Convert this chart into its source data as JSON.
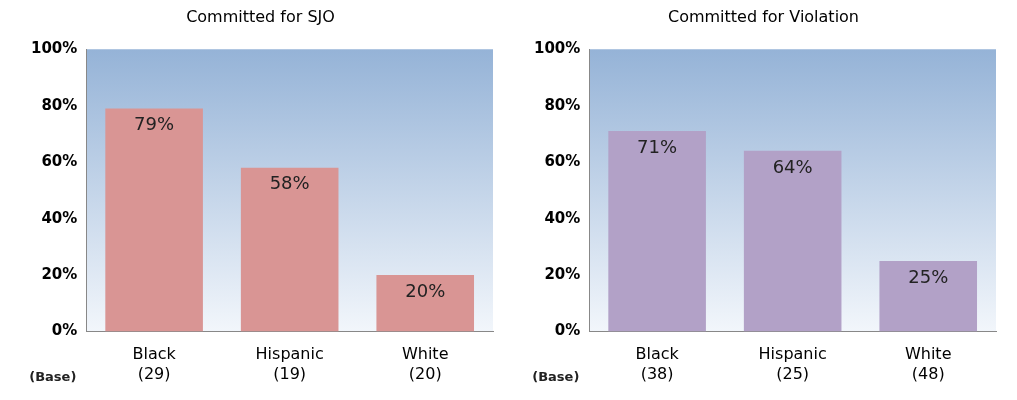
{
  "chart_data": [
    {
      "type": "bar",
      "title": "Committed for SJO",
      "categories": [
        "Black\n(29)",
        "Hispanic\n(19)",
        "White\n(20)"
      ],
      "values": [
        79,
        58,
        20
      ],
      "value_labels": [
        "79%",
        "58%",
        "20%"
      ],
      "color": "#d99594",
      "ylim": [
        0,
        100
      ],
      "yticks": [
        {
          "value": 0,
          "label": "0%"
        },
        {
          "value": 20,
          "label": "20%"
        },
        {
          "value": 40,
          "label": "40%"
        },
        {
          "value": 60,
          "label": "60%"
        },
        {
          "value": 80,
          "label": "80%"
        },
        {
          "value": 100,
          "label": "100%"
        }
      ],
      "annotations": [
        "(Base)"
      ]
    },
    {
      "type": "bar",
      "title": "Committed for Violation",
      "categories": [
        "Black\n(38)",
        "Hispanic\n(25)",
        "White\n(48)"
      ],
      "values": [
        71,
        64,
        25
      ],
      "value_labels": [
        "71%",
        "64%",
        "25%"
      ],
      "color": "#b2a1c7",
      "ylim": [
        0,
        100
      ],
      "yticks": [
        {
          "value": 0,
          "label": "0%"
        },
        {
          "value": 20,
          "label": "20%"
        },
        {
          "value": 40,
          "label": "40%"
        },
        {
          "value": 60,
          "label": "60%"
        },
        {
          "value": 80,
          "label": "80%"
        },
        {
          "value": 100,
          "label": "100%"
        }
      ],
      "annotations": [
        "(Base)"
      ]
    }
  ]
}
